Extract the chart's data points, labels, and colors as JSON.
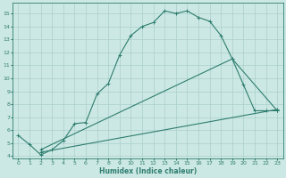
{
  "xlabel": "Humidex (Indice chaleur)",
  "bg_color": "#cce8e4",
  "line_color": "#2e7d6f",
  "grid_color": "#aacfcb",
  "xlim": [
    -0.5,
    23.5
  ],
  "ylim": [
    3.8,
    15.8
  ],
  "yticks": [
    4,
    5,
    6,
    7,
    8,
    9,
    10,
    11,
    12,
    13,
    14,
    15
  ],
  "xticks": [
    0,
    1,
    2,
    3,
    4,
    5,
    6,
    7,
    8,
    9,
    10,
    11,
    12,
    13,
    14,
    15,
    16,
    17,
    18,
    19,
    20,
    21,
    22,
    23
  ],
  "series": [
    {
      "x": [
        0,
        1,
        2,
        3,
        4,
        5,
        6,
        7,
        8,
        9,
        10,
        11,
        12,
        13,
        14,
        15,
        16,
        17,
        18,
        19,
        20,
        21,
        22,
        23
      ],
      "y": [
        5.6,
        4.9,
        4.1,
        4.5,
        5.2,
        6.5,
        6.6,
        8.8,
        9.6,
        11.8,
        13.3,
        14.0,
        14.3,
        15.2,
        15.0,
        15.2,
        14.7,
        14.4,
        13.3,
        11.5,
        9.5,
        7.5,
        7.5,
        7.5
      ]
    },
    {
      "x": [
        2,
        19,
        23
      ],
      "y": [
        4.5,
        11.5,
        7.5
      ]
    },
    {
      "x": [
        2,
        23
      ],
      "y": [
        4.3,
        7.6
      ]
    }
  ]
}
